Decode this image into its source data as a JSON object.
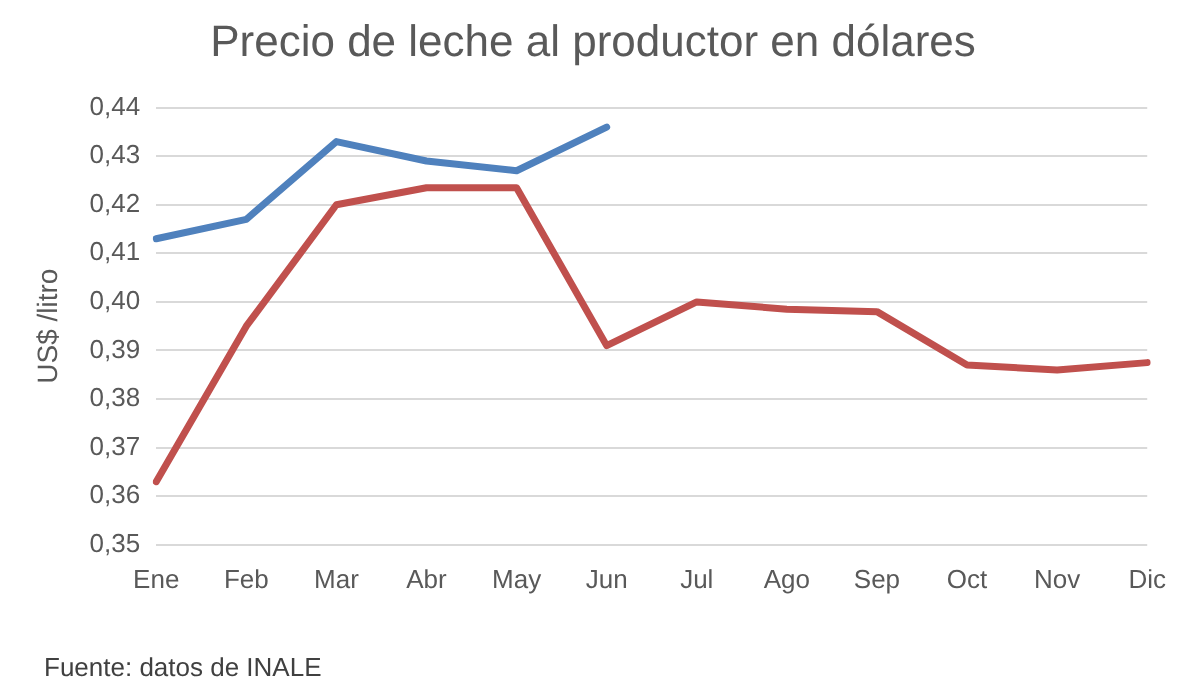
{
  "chart_data": {
    "type": "line",
    "title": "Precio de leche al productor en dólares",
    "ylabel": "US$ /litro",
    "annotations": [
      "Fuente: datos de INALE"
    ],
    "categories": [
      "Ene",
      "Feb",
      "Mar",
      "Abr",
      "May",
      "Jun",
      "Jul",
      "Ago",
      "Sep",
      "Oct",
      "Nov",
      "Dic"
    ],
    "series": [
      {
        "color": "#4f81bd",
        "values": [
          0.413,
          0.417,
          0.433,
          0.429,
          0.427,
          0.436,
          null,
          null,
          null,
          null,
          null,
          null
        ]
      },
      {
        "color": "#c0504d",
        "values": [
          0.363,
          0.395,
          0.42,
          0.4235,
          0.4235,
          0.391,
          0.4,
          0.3985,
          0.398,
          0.387,
          0.386,
          0.3875
        ]
      }
    ],
    "ylim": [
      0.35,
      0.44
    ],
    "yticks": [
      {
        "value": 0.35,
        "label": "0,35"
      },
      {
        "value": 0.36,
        "label": "0,36"
      },
      {
        "value": 0.37,
        "label": "0,37"
      },
      {
        "value": 0.38,
        "label": "0,38"
      },
      {
        "value": 0.39,
        "label": "0,39"
      },
      {
        "value": 0.4,
        "label": "0,40"
      },
      {
        "value": 0.41,
        "label": "0,41"
      },
      {
        "value": 0.42,
        "label": "0,42"
      },
      {
        "value": 0.43,
        "label": "0,43"
      },
      {
        "value": 0.44,
        "label": "0,44"
      }
    ],
    "grid": "y",
    "legend": false,
    "marker": "none",
    "line_style": "solid"
  }
}
